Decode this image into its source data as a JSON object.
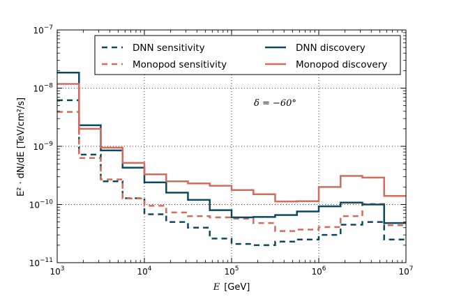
{
  "chart_data": {
    "type": "line",
    "step": true,
    "xscale": "log",
    "yscale": "log",
    "xlim": [
      1000,
      10000000
    ],
    "ylim": [
      1e-11,
      1e-07
    ],
    "grid": true,
    "legend_position": "top",
    "xlabel": "E",
    "xlabel_unit": "[GeV]",
    "ylabel": "E² · dN/dE [TeV/cm²/s]",
    "annotation": "δ = −60°",
    "x_ticks": [
      {
        "base": "10",
        "exp": "3"
      },
      {
        "base": "10",
        "exp": "4"
      },
      {
        "base": "10",
        "exp": "5"
      },
      {
        "base": "10",
        "exp": "6"
      },
      {
        "base": "10",
        "exp": "7"
      }
    ],
    "y_ticks": [
      {
        "base": "10",
        "exp": "−11"
      },
      {
        "base": "10",
        "exp": "−10"
      },
      {
        "base": "10",
        "exp": "−9"
      },
      {
        "base": "10",
        "exp": "−8"
      },
      {
        "base": "10",
        "exp": "−7"
      }
    ],
    "bin_edges": [
      1000,
      1780,
      3160,
      5620,
      10000,
      17800,
      31600,
      56200,
      100000,
      178000,
      316000,
      562000,
      1000000,
      1780000,
      3160000,
      5620000,
      10000000
    ],
    "series": [
      {
        "name": "DNN sensitivity",
        "color": "#0b4a5e",
        "style": "dashed",
        "values": [
          6.2e-09,
          7.2e-10,
          2.5e-10,
          1.28e-10,
          6.8e-11,
          5e-11,
          4e-11,
          2.6e-11,
          2.1e-11,
          2e-11,
          2.3e-11,
          2.5e-11,
          3e-11,
          4.5e-11,
          5e-11,
          2.5e-11
        ]
      },
      {
        "name": "Monopod sensitivity",
        "color": "#d66a5b",
        "style": "dashed",
        "values": [
          3.9e-09,
          6.3e-10,
          2.7e-10,
          1.27e-10,
          9.5e-11,
          7.3e-11,
          6.3e-11,
          6e-11,
          5.7e-11,
          4.8e-11,
          3.5e-11,
          3.7e-11,
          4.1e-11,
          6.3e-11,
          1.02e-10,
          4.4e-11
        ]
      },
      {
        "name": "DNN discovery",
        "color": "#0b4a5e",
        "style": "solid",
        "values": [
          1.85e-08,
          2.3e-09,
          8.5e-10,
          4.3e-10,
          2.4e-10,
          1.6e-10,
          1.2e-10,
          8e-11,
          6e-11,
          6.1e-11,
          6.6e-11,
          7.6e-11,
          9.3e-11,
          1.08e-10,
          1e-10,
          4.8e-11
        ]
      },
      {
        "name": "Monopod discovery",
        "color": "#d66a5b",
        "style": "solid",
        "values": [
          1.18e-08,
          2e-09,
          9.5e-10,
          5.2e-10,
          3.3e-10,
          2.5e-10,
          2.3e-10,
          2.1e-10,
          1.77e-10,
          1.5e-10,
          1.13e-10,
          1.14e-10,
          2e-10,
          3.1e-10,
          2.9e-10,
          1.4e-10
        ]
      }
    ]
  }
}
